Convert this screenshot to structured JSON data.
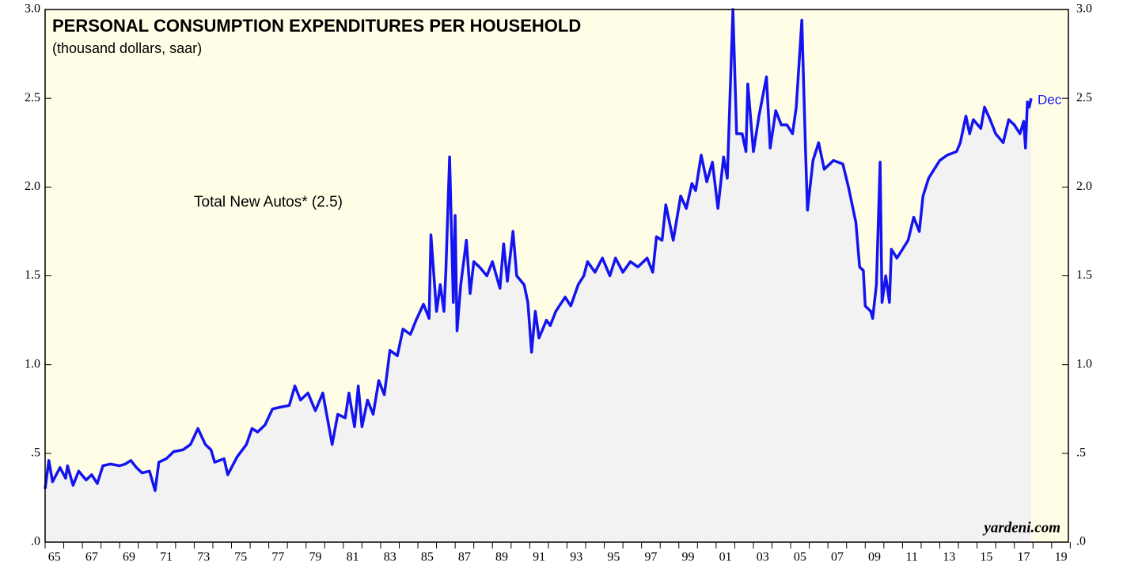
{
  "chart_data": {
    "type": "line",
    "title": "PERSONAL CONSUMPTION EXPENDITURES PER HOUSEHOLD",
    "subtitle": "(thousand dollars, saar)",
    "annotation": "Total New Autos* (2.5)",
    "end_label": "Dec",
    "source": "yardeni.com",
    "xlim": [
      1965,
      2019.9
    ],
    "ylim": [
      0,
      3
    ],
    "yticks": [
      {
        "value": 0,
        "label": ".0"
      },
      {
        "value": 0.5,
        "label": ".5"
      },
      {
        "value": 1,
        "label": "1.0"
      },
      1.5,
      {
        "value": 2,
        "label": "2.0"
      },
      2.5,
      {
        "value": 3,
        "label": "3.0"
      }
    ],
    "xticks": [
      {
        "value": 1965,
        "label": "65"
      },
      {
        "value": 1967,
        "label": "67"
      },
      {
        "value": 1969,
        "label": "69"
      },
      {
        "value": 1971,
        "label": "71"
      },
      {
        "value": 1973,
        "label": "73"
      },
      {
        "value": 1975,
        "label": "75"
      },
      {
        "value": 1977,
        "label": "77"
      },
      {
        "value": 1979,
        "label": "79"
      },
      {
        "value": 1981,
        "label": "81"
      },
      {
        "value": 1983,
        "label": "83"
      },
      {
        "value": 1985,
        "label": "85"
      },
      {
        "value": 1987,
        "label": "87"
      },
      {
        "value": 1989,
        "label": "89"
      },
      {
        "value": 1991,
        "label": "91"
      },
      {
        "value": 1993,
        "label": "93"
      },
      {
        "value": 1995,
        "label": "95"
      },
      {
        "value": 1997,
        "label": "97"
      },
      {
        "value": 1999,
        "label": "99"
      },
      {
        "value": 2001,
        "label": "01"
      },
      {
        "value": 2003,
        "label": "03"
      },
      {
        "value": 2005,
        "label": "05"
      },
      {
        "value": 2007,
        "label": "07"
      },
      {
        "value": 2009,
        "label": "09"
      },
      {
        "value": 2011,
        "label": "11"
      },
      {
        "value": 2013,
        "label": "13"
      },
      {
        "value": 2015,
        "label": "15"
      },
      {
        "value": 2017,
        "label": "17"
      },
      {
        "value": 2019,
        "label": "19"
      }
    ],
    "x": [
      1965.0,
      1965.2,
      1965.4,
      1965.8,
      1966.1,
      1966.2,
      1966.5,
      1966.8,
      1967.2,
      1967.5,
      1967.8,
      1968.1,
      1968.5,
      1969.0,
      1969.3,
      1969.6,
      1969.9,
      1970.2,
      1970.6,
      1970.9,
      1971.1,
      1971.5,
      1971.9,
      1972.4,
      1972.8,
      1973.2,
      1973.6,
      1973.9,
      1974.1,
      1974.6,
      1974.8,
      1975.1,
      1975.3,
      1975.8,
      1976.1,
      1976.4,
      1976.8,
      1977.2,
      1977.6,
      1978.1,
      1978.4,
      1978.7,
      1979.1,
      1979.5,
      1979.9,
      1980.4,
      1980.7,
      1981.1,
      1981.3,
      1981.6,
      1981.8,
      1982.0,
      1982.3,
      1982.6,
      1982.9,
      1983.2,
      1983.5,
      1983.9,
      1984.2,
      1984.6,
      1984.9,
      1985.3,
      1985.6,
      1985.7,
      1986.0,
      1986.2,
      1986.4,
      1986.5,
      1986.7,
      1986.9,
      1987.0,
      1987.1,
      1987.3,
      1987.6,
      1987.8,
      1988.0,
      1988.3,
      1988.7,
      1989.0,
      1989.4,
      1989.6,
      1989.8,
      1990.1,
      1990.3,
      1990.7,
      1990.9,
      1991.1,
      1991.3,
      1991.5,
      1991.9,
      1992.1,
      1992.4,
      1992.9,
      1993.2,
      1993.6,
      1993.9,
      1994.1,
      1994.5,
      1994.9,
      1995.3,
      1995.6,
      1996.0,
      1996.4,
      1996.8,
      1997.3,
      1997.6,
      1997.8,
      1998.1,
      1998.3,
      1998.7,
      1999.1,
      1999.4,
      1999.7,
      1999.9,
      2000.2,
      2000.5,
      2000.8,
      2001.1,
      2001.4,
      2001.6,
      2001.9,
      2002.1,
      2002.4,
      2002.6,
      2002.7,
      2003.0,
      2003.3,
      2003.7,
      2003.9,
      2004.2,
      2004.5,
      2004.8,
      2005.1,
      2005.3,
      2005.6,
      2005.8,
      2005.9,
      2006.2,
      2006.5,
      2006.8,
      2007.3,
      2007.8,
      2008.1,
      2008.5,
      2008.7,
      2008.9,
      2009.0,
      2009.3,
      2009.4,
      2009.6,
      2009.8,
      2009.9,
      2010.1,
      2010.3,
      2010.4,
      2010.7,
      2011.0,
      2011.3,
      2011.6,
      2011.9,
      2012.1,
      2012.4,
      2012.7,
      2013.0,
      2013.4,
      2013.9,
      2014.1,
      2014.4,
      2014.6,
      2014.8,
      2015.2,
      2015.4,
      2015.7,
      2016.0,
      2016.4,
      2016.7,
      2017.0,
      2017.3,
      2017.5,
      2017.6,
      2017.7,
      2017.8,
      2017.9
    ],
    "series": [
      {
        "name": "Total New Autos",
        "color": "#1414f0",
        "values": [
          0.3,
          0.46,
          0.34,
          0.42,
          0.36,
          0.43,
          0.32,
          0.4,
          0.35,
          0.38,
          0.33,
          0.43,
          0.44,
          0.43,
          0.44,
          0.46,
          0.42,
          0.39,
          0.4,
          0.29,
          0.45,
          0.47,
          0.51,
          0.52,
          0.55,
          0.64,
          0.55,
          0.52,
          0.45,
          0.47,
          0.38,
          0.44,
          0.48,
          0.55,
          0.64,
          0.62,
          0.66,
          0.75,
          0.76,
          0.77,
          0.88,
          0.8,
          0.84,
          0.74,
          0.84,
          0.55,
          0.72,
          0.7,
          0.84,
          0.65,
          0.88,
          0.65,
          0.8,
          0.72,
          0.91,
          0.83,
          1.08,
          1.05,
          1.2,
          1.17,
          1.25,
          1.34,
          1.26,
          1.73,
          1.3,
          1.45,
          1.3,
          1.53,
          2.17,
          1.35,
          1.84,
          1.19,
          1.45,
          1.7,
          1.4,
          1.58,
          1.55,
          1.5,
          1.58,
          1.43,
          1.68,
          1.47,
          1.75,
          1.5,
          1.45,
          1.35,
          1.07,
          1.3,
          1.15,
          1.25,
          1.22,
          1.3,
          1.38,
          1.33,
          1.45,
          1.5,
          1.58,
          1.52,
          1.6,
          1.5,
          1.6,
          1.52,
          1.58,
          1.55,
          1.6,
          1.52,
          1.72,
          1.7,
          1.9,
          1.7,
          1.95,
          1.88,
          2.02,
          1.98,
          2.18,
          2.03,
          2.14,
          1.88,
          2.17,
          2.05,
          3.0,
          2.3,
          2.3,
          2.2,
          2.58,
          2.2,
          2.4,
          2.62,
          2.22,
          2.43,
          2.35,
          2.35,
          2.3,
          2.45,
          2.94,
          2.2,
          1.87,
          2.15,
          2.25,
          2.1,
          2.15,
          2.13,
          2.0,
          1.8,
          1.55,
          1.53,
          1.33,
          1.3,
          1.26,
          1.45,
          2.14,
          1.35,
          1.5,
          1.35,
          1.65,
          1.6,
          1.65,
          1.7,
          1.83,
          1.75,
          1.95,
          2.05,
          2.1,
          2.15,
          2.18,
          2.2,
          2.25,
          2.4,
          2.3,
          2.38,
          2.33,
          2.45,
          2.38,
          2.3,
          2.25,
          2.38,
          2.35,
          2.3,
          2.37,
          2.22,
          2.48,
          2.45,
          2.5
        ]
      }
    ],
    "background": "#fffde6",
    "fill": "#f2f2f2"
  }
}
